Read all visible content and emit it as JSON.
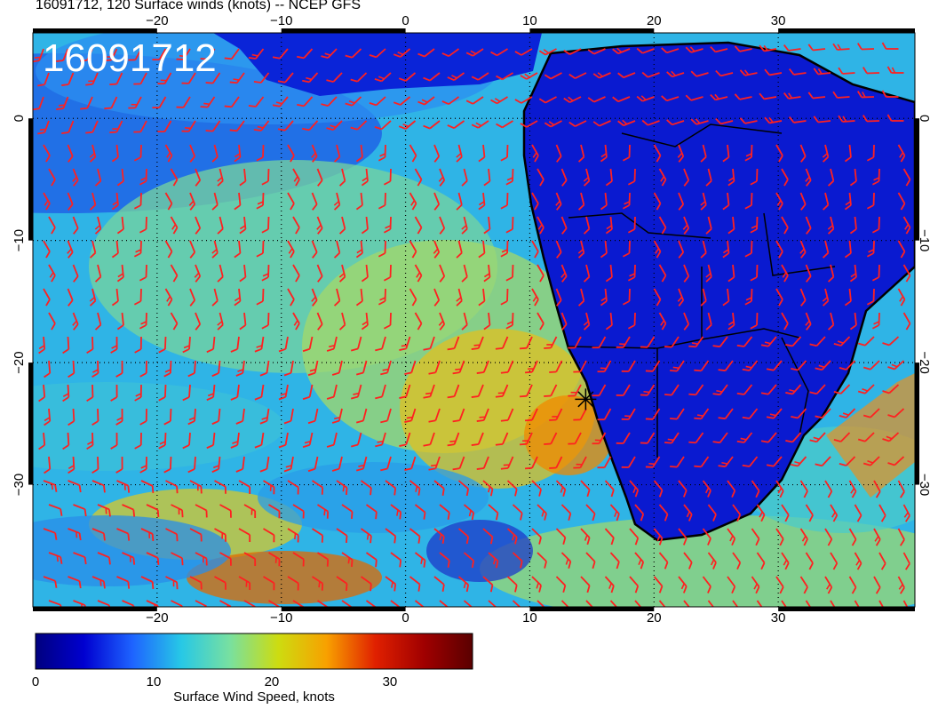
{
  "title": "16091712, 120 Surface winds (knots) -- NCEP GFS",
  "map_label": "16091712",
  "map_region": {
    "lon_range": [
      -30,
      41
    ],
    "lat_range": [
      -40,
      7
    ],
    "lon_ticks": [
      -20,
      -10,
      0,
      10,
      20,
      30
    ],
    "lat_ticks": [
      0,
      -10,
      -20,
      -30
    ],
    "lon_tick_labels": [
      "−20",
      "−10",
      "0",
      "10",
      "20",
      "30"
    ],
    "lat_tick_labels": [
      "0",
      "−10",
      "−20",
      "−30"
    ],
    "gridlines": "dotted"
  },
  "wind_barb_color": "#ff2020",
  "coastline_color": "#000000",
  "colorbar": {
    "label": "Surface Wind Speed, knots",
    "range": [
      0,
      37
    ],
    "tick_values": [
      0,
      10,
      20,
      30
    ],
    "tick_labels": [
      "0",
      "10",
      "20",
      "30"
    ],
    "colors": [
      "#00007f",
      "#0000d0",
      "#1e64ff",
      "#27c8e6",
      "#78e0a0",
      "#cddc10",
      "#f8a000",
      "#e02000",
      "#a00000",
      "#5a0000"
    ]
  },
  "marker": {
    "symbol": "star",
    "lon": 14.5,
    "lat": -23
  }
}
